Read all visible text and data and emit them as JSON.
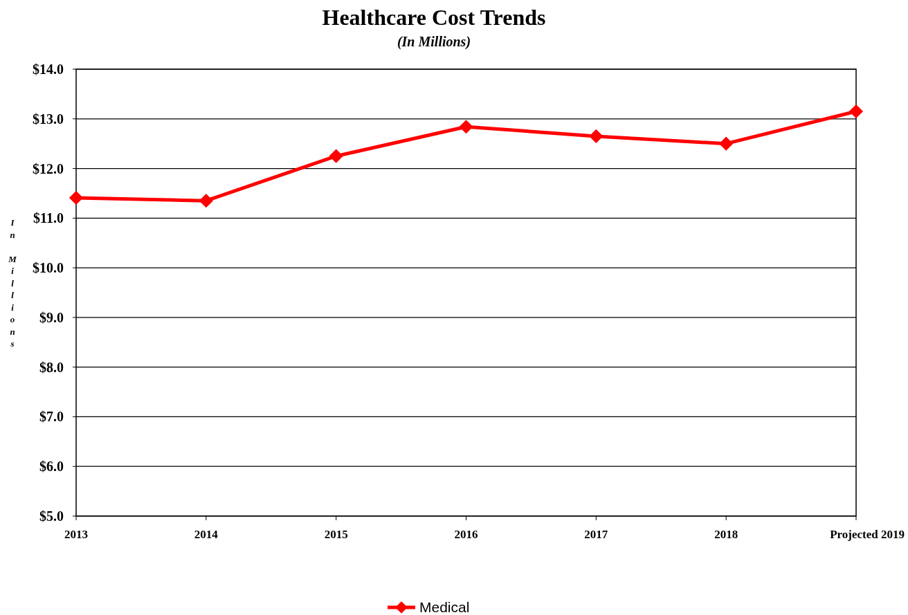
{
  "chart_data": {
    "type": "line",
    "title": "Healthcare Cost Trends",
    "subtitle": "(In Millions)",
    "ylabel": "In Millions",
    "categories": [
      "2013",
      "2014",
      "2015",
      "2016",
      "2017",
      "2018",
      "Projected 2019"
    ],
    "series": [
      {
        "name": "Medical",
        "color": "#ff0000",
        "values": [
          11.41,
          11.35,
          12.25,
          12.84,
          12.65,
          12.5,
          13.15
        ]
      }
    ],
    "ylim": [
      5,
      14
    ],
    "yticks": [
      {
        "value": 5,
        "label": "$5.0"
      },
      {
        "value": 6,
        "label": "$6.0"
      },
      {
        "value": 7,
        "label": "$7.0"
      },
      {
        "value": 8,
        "label": "$8.0"
      },
      {
        "value": 9,
        "label": "$9.0"
      },
      {
        "value": 10,
        "label": "$10.0"
      },
      {
        "value": 11,
        "label": "$11.0"
      },
      {
        "value": 12,
        "label": "$12.0"
      },
      {
        "value": 13,
        "label": "$13.0"
      },
      {
        "value": 14,
        "label": "$14.0"
      }
    ],
    "grid": "y",
    "legend": "bottom",
    "marker": "diamond",
    "line_style": "solid"
  }
}
